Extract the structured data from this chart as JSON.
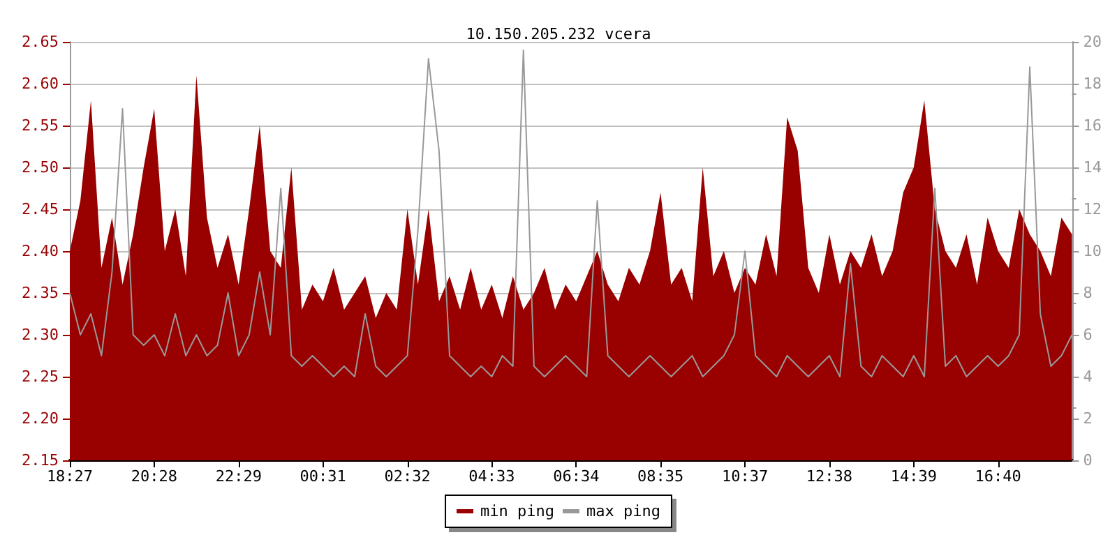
{
  "chart_data": {
    "type": "area",
    "title": "10.150.205.232 vcera",
    "categories": [
      "18:27",
      null,
      null,
      null,
      null,
      null,
      null,
      null,
      "20:28",
      null,
      null,
      null,
      null,
      null,
      null,
      null,
      "22:29",
      null,
      null,
      null,
      null,
      null,
      null,
      null,
      "00:31",
      null,
      null,
      null,
      null,
      null,
      null,
      null,
      "02:32",
      null,
      null,
      null,
      null,
      null,
      null,
      null,
      "04:33",
      null,
      null,
      null,
      null,
      null,
      null,
      null,
      "06:34",
      null,
      null,
      null,
      null,
      null,
      null,
      null,
      "08:35",
      null,
      null,
      null,
      null,
      null,
      null,
      null,
      "10:37",
      null,
      null,
      null,
      null,
      null,
      null,
      null,
      "12:38",
      null,
      null,
      null,
      null,
      null,
      null,
      null,
      "14:39",
      null,
      null,
      null,
      null,
      null,
      null,
      null,
      "16:40",
      null,
      null,
      null,
      null,
      null,
      null,
      null
    ],
    "series": [
      {
        "name": "min ping",
        "color": "#990000",
        "values": [
          2.4,
          2.46,
          2.58,
          2.38,
          2.44,
          2.36,
          2.42,
          2.5,
          2.57,
          2.4,
          2.45,
          2.37,
          2.61,
          2.44,
          2.38,
          2.42,
          2.36,
          2.45,
          2.55,
          2.4,
          2.38,
          2.5,
          2.33,
          2.36,
          2.34,
          2.38,
          2.33,
          2.35,
          2.37,
          2.32,
          2.35,
          2.33,
          2.45,
          2.36,
          2.45,
          2.34,
          2.37,
          2.33,
          2.38,
          2.33,
          2.36,
          2.32,
          2.37,
          2.33,
          2.35,
          2.38,
          2.33,
          2.36,
          2.34,
          2.37,
          2.4,
          2.36,
          2.34,
          2.38,
          2.36,
          2.4,
          2.47,
          2.36,
          2.38,
          2.34,
          2.5,
          2.37,
          2.4,
          2.35,
          2.38,
          2.36,
          2.42,
          2.37,
          2.56,
          2.52,
          2.38,
          2.35,
          2.42,
          2.36,
          2.4,
          2.38,
          2.42,
          2.37,
          2.4,
          2.47,
          2.5,
          2.58,
          2.45,
          2.4,
          2.38,
          2.42,
          2.36,
          2.44,
          2.4,
          2.38,
          2.45,
          2.42,
          2.4,
          2.37,
          2.44,
          2.42
        ]
      },
      {
        "name": "max ping",
        "type": "line",
        "axis": "y2",
        "color": "#999999",
        "values": [
          8,
          6,
          7,
          5,
          9,
          16.8,
          6,
          5.5,
          6,
          5,
          7,
          5,
          6,
          5,
          5.5,
          8,
          5,
          6,
          9,
          6,
          13,
          5,
          4.5,
          5,
          4.5,
          4,
          4.5,
          4,
          7,
          4.5,
          4,
          4.5,
          5,
          11,
          19.2,
          14.8,
          5,
          4.5,
          4,
          4.5,
          4,
          5,
          4.5,
          19.6,
          4.5,
          4,
          4.5,
          5,
          4.5,
          4,
          12.4,
          5,
          4.5,
          4,
          4.5,
          5,
          4.5,
          4,
          4.5,
          5,
          4,
          4.5,
          5,
          6,
          10,
          5,
          4.5,
          4,
          5,
          4.5,
          4,
          4.5,
          5,
          4,
          9.4,
          4.5,
          4,
          5,
          4.5,
          4,
          5,
          4,
          13,
          4.5,
          5,
          4,
          4.5,
          5,
          4.5,
          5,
          6,
          18.8,
          7,
          4.5,
          5,
          6
        ]
      }
    ],
    "ylim": [
      2.15,
      2.65
    ],
    "yticks": [
      {
        "value": 2.15,
        "label": "2.15"
      },
      {
        "value": 2.2,
        "label": "2.20"
      },
      {
        "value": 2.25,
        "label": "2.25"
      },
      {
        "value": 2.3,
        "label": "2.30"
      },
      {
        "value": 2.35,
        "label": "2.35"
      },
      {
        "value": 2.4,
        "label": "2.40"
      },
      {
        "value": 2.45,
        "label": "2.45"
      },
      {
        "value": 2.5,
        "label": "2.50"
      },
      {
        "value": 2.55,
        "label": "2.55"
      },
      {
        "value": 2.6,
        "label": "2.60"
      },
      {
        "value": 2.65,
        "label": "2.65"
      }
    ],
    "y2lim": [
      0,
      20
    ],
    "y2ticks": [
      0,
      2,
      4,
      6,
      8,
      10,
      12,
      14,
      16,
      18,
      20
    ],
    "grid": "y",
    "legend": "bottom"
  }
}
